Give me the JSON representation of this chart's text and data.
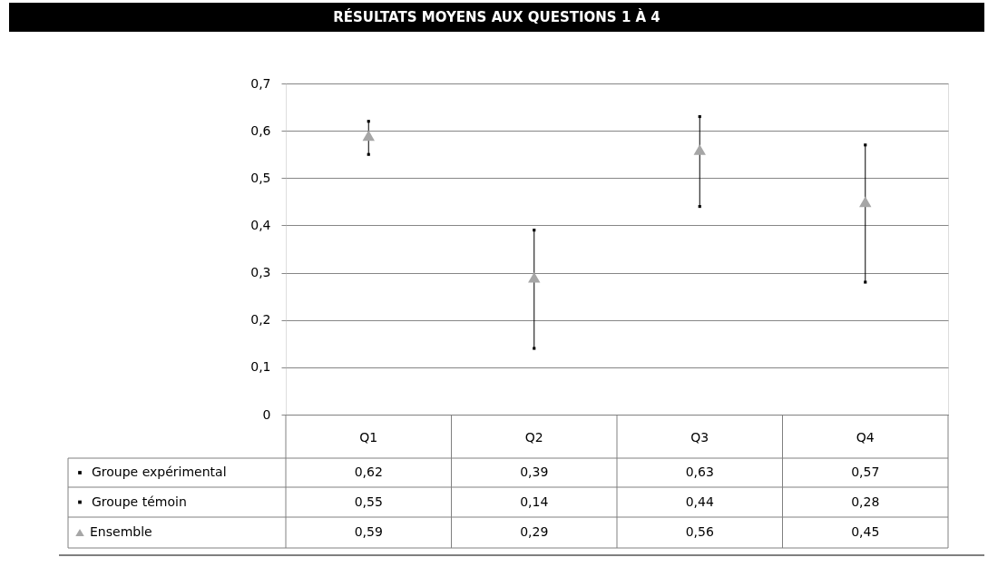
{
  "chart_data": {
    "type": "scatter",
    "title": "RÉSULTATS MOYENS AUX QUESTIONS 1 À 4",
    "categories": [
      "Q1",
      "Q2",
      "Q3",
      "Q4"
    ],
    "series": [
      {
        "name": "Groupe expérimental",
        "marker": "square",
        "color": "#000000",
        "values": [
          0.62,
          0.39,
          0.63,
          0.57
        ],
        "value_labels": [
          "0,62",
          "0,39",
          "0,63",
          "0,57"
        ]
      },
      {
        "name": "Groupe témoin",
        "marker": "square",
        "color": "#000000",
        "values": [
          0.55,
          0.14,
          0.44,
          0.28
        ],
        "value_labels": [
          "0,55",
          "0,14",
          "0,44",
          "0,28"
        ]
      },
      {
        "name": "Ensemble",
        "color": "#a6a6a6",
        "values": [
          0.59,
          0.29,
          0.56,
          0.45
        ],
        "value_labels": [
          "0,59",
          "0,29",
          "0,56",
          "0,45"
        ]
      }
    ],
    "marker": "triangle",
    "ylim": [
      0,
      0.7
    ],
    "yticks": [
      0,
      {
        "value": 0.1,
        "label": "0,1"
      },
      {
        "value": 0.2,
        "label": "0,2"
      },
      {
        "value": 0.3,
        "label": "0,3"
      },
      {
        "value": 0.4,
        "label": "0,4"
      },
      {
        "value": 0.5,
        "label": "0,5"
      },
      {
        "value": 0.6,
        "label": "0,6"
      },
      {
        "value": 0.7,
        "label": "0,7"
      }
    ],
    "grid": "y",
    "legend": "bottom"
  }
}
